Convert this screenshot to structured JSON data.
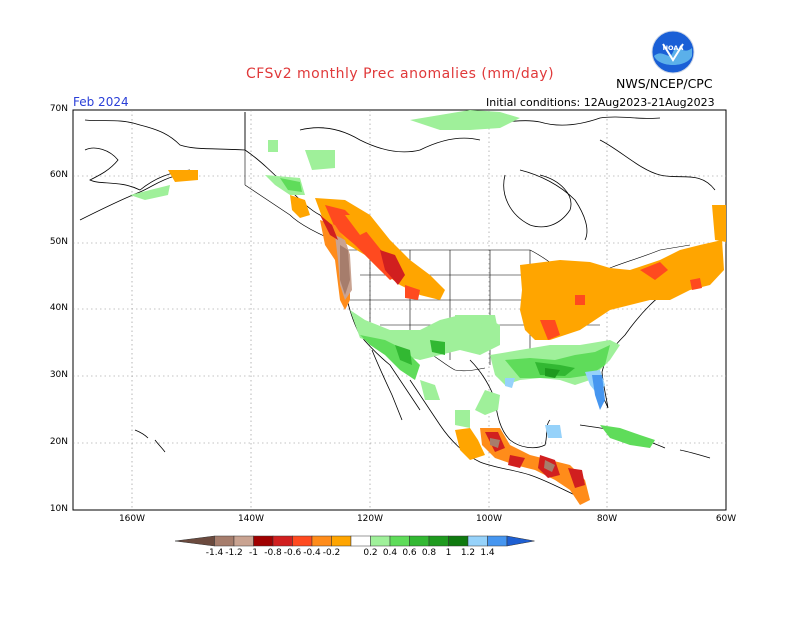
{
  "header": {
    "title": "CFSv2 monthly Prec anomalies (mm/day)",
    "agency": "NWS/NCEP/CPC",
    "month": "Feb 2024",
    "initial_conditions": "Initial conditions: 12Aug2023-21Aug2023",
    "logo_text": "NOAA"
  },
  "axes": {
    "lat_labels": [
      "70N",
      "60N",
      "50N",
      "40N",
      "30N",
      "20N",
      "10N"
    ],
    "lon_labels": [
      "160W",
      "140W",
      "120W",
      "100W",
      "80W",
      "60W"
    ]
  },
  "colorbar": {
    "labels": [
      "-1.4",
      "-1.2",
      "-1",
      "-0.8",
      "-0.6",
      "-0.4",
      "-0.2",
      "0.2",
      "0.4",
      "0.6",
      "0.8",
      "1",
      "1.2",
      "1.4"
    ],
    "colors": [
      "#6b4a3e",
      "#a67d6c",
      "#c9a391",
      "#a00000",
      "#d11f1f",
      "#ff4a1f",
      "#ff8c1a",
      "#ffa500",
      "#ffffff",
      "#9ff09a",
      "#5fdc5a",
      "#32b832",
      "#1e9a1e",
      "#0f7a0f",
      "#96d2fa",
      "#4696f0",
      "#1e5fd2"
    ]
  }
}
